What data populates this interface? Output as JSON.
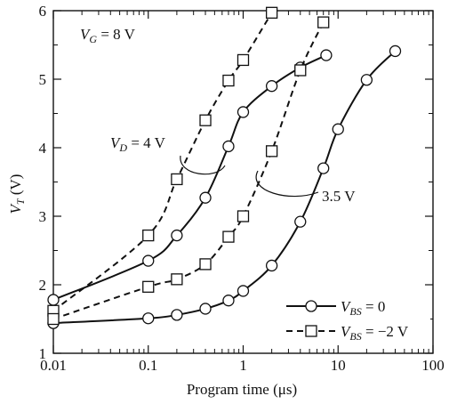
{
  "chart_data": {
    "type": "line",
    "xscale": "log",
    "xlim": [
      0.01,
      100
    ],
    "ylim": [
      1,
      6
    ],
    "xlabel": "Program time (μs)",
    "ylabel_main": "V",
    "ylabel_sub": "T",
    "ylabel_unit": " (V)",
    "x_ticks": [
      {
        "value": 0.01,
        "label": "0.01"
      },
      {
        "value": 0.1,
        "label": "0.1"
      },
      {
        "value": 1,
        "label": "1"
      },
      {
        "value": 10,
        "label": "10"
      },
      {
        "value": 100,
        "label": "100"
      }
    ],
    "y_ticks": [
      {
        "value": 1,
        "label": "1"
      },
      {
        "value": 2,
        "label": "2"
      },
      {
        "value": 3,
        "label": "3"
      },
      {
        "value": 4,
        "label": "4"
      },
      {
        "value": 5,
        "label": "5"
      },
      {
        "value": 6,
        "label": "6"
      }
    ],
    "grid": false,
    "legend_position": "bottom-right",
    "series": [
      {
        "name": "V_BS = 0, V_D = 4 V",
        "style": "solid",
        "marker": "circle",
        "points": [
          [
            0.01,
            1.78
          ],
          [
            0.1,
            2.35
          ],
          [
            0.2,
            2.72
          ],
          [
            0.4,
            3.27
          ],
          [
            0.7,
            4.02
          ],
          [
            1.0,
            4.52
          ],
          [
            2.0,
            4.9
          ],
          [
            4.0,
            5.17
          ],
          [
            7.5,
            5.35
          ]
        ]
      },
      {
        "name": "V_BS = −2 V, V_D = 4 V",
        "style": "dashed",
        "marker": "square",
        "points": [
          [
            0.01,
            1.62
          ],
          [
            0.1,
            2.72
          ],
          [
            0.2,
            3.54
          ],
          [
            0.4,
            4.4
          ],
          [
            0.7,
            4.98
          ],
          [
            1.0,
            5.28
          ],
          [
            2.0,
            5.97
          ]
        ]
      },
      {
        "name": "V_BS = 0, V_D = 3.5 V",
        "style": "solid",
        "marker": "circle",
        "points": [
          [
            0.01,
            1.44
          ],
          [
            0.1,
            1.51
          ],
          [
            0.2,
            1.56
          ],
          [
            0.4,
            1.65
          ],
          [
            0.7,
            1.77
          ],
          [
            1.0,
            1.91
          ],
          [
            2.0,
            2.28
          ],
          [
            4.0,
            2.92
          ],
          [
            7.0,
            3.7
          ],
          [
            10.0,
            4.27
          ],
          [
            20.0,
            4.99
          ],
          [
            40.0,
            5.41
          ]
        ]
      },
      {
        "name": "V_BS = −2 V, V_D = 3.5 V",
        "style": "dashed",
        "marker": "square",
        "points": [
          [
            0.01,
            1.5
          ],
          [
            0.1,
            1.97
          ],
          [
            0.2,
            2.08
          ],
          [
            0.4,
            2.3
          ],
          [
            0.7,
            2.7
          ],
          [
            1.0,
            3.0
          ],
          [
            2.0,
            3.95
          ],
          [
            4.0,
            5.13
          ],
          [
            7.0,
            5.83
          ]
        ]
      }
    ],
    "annotations": {
      "vg": {
        "main": "V",
        "sub": "G",
        "rest": " = 8 V"
      },
      "vd": {
        "main": "V",
        "sub": "D",
        "rest": " = 4 V"
      },
      "vd2": {
        "text": "3.5 V"
      }
    },
    "legend": [
      {
        "main": "V",
        "sub": "BS",
        "rest": " = 0",
        "style": "solid",
        "marker": "circle"
      },
      {
        "main": "V",
        "sub": "BS",
        "rest": " = −2 V",
        "style": "dashed",
        "marker": "square"
      }
    ]
  }
}
